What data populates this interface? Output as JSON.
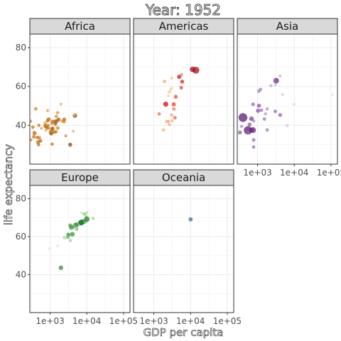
{
  "chart_data": {
    "type": "scatter",
    "title": "Year: 1952",
    "xlabel": "GDP per capita",
    "ylabel": "life expectancy",
    "x_scale": "log10",
    "xlim": [
      280,
      150000
    ],
    "ylim": [
      20,
      87
    ],
    "x_ticks": [
      1000,
      10000,
      100000
    ],
    "x_tick_labels": [
      "1e+03",
      "1e+04",
      "1e+05"
    ],
    "y_ticks": [
      40,
      60,
      80
    ],
    "y_tick_labels": [
      "40",
      "60",
      "80"
    ],
    "grid": true,
    "legend": "none",
    "facets": [
      {
        "name": "Africa",
        "points": [
          {
            "x": 2449,
            "y": 43.1,
            "c": "#d08a2e",
            "s": 2.6
          },
          {
            "x": 3521,
            "y": 30.0,
            "c": "#8a4a07",
            "s": 2.8
          },
          {
            "x": 1063,
            "y": 38.2,
            "c": "#cf7a14",
            "s": 2.4
          },
          {
            "x": 851,
            "y": 47.6,
            "c": "#d9a24f",
            "s": 2.2
          },
          {
            "x": 543,
            "y": 32.0,
            "c": "#b8660c",
            "s": 2.6
          },
          {
            "x": 339,
            "y": 39.0,
            "c": "#c77712",
            "s": 2.4
          },
          {
            "x": 1173,
            "y": 38.5,
            "c": "#c46f11",
            "s": 2.5
          },
          {
            "x": 1071,
            "y": 35.5,
            "c": "#d08224",
            "s": 2.2
          },
          {
            "x": 1179,
            "y": 38.1,
            "c": "#b66a10",
            "s": 2.4
          },
          {
            "x": 1103,
            "y": 40.7,
            "c": "#e2ac5a",
            "s": 2.0
          },
          {
            "x": 781,
            "y": 39.1,
            "c": "#cd7d1b",
            "s": 2.5
          },
          {
            "x": 2126,
            "y": 42.1,
            "c": "#d89335",
            "s": 2.2
          },
          {
            "x": 1389,
            "y": 40.5,
            "c": "#c2700f",
            "s": 2.5
          },
          {
            "x": 2670,
            "y": 34.5,
            "c": "#d58c2a",
            "s": 2.1
          },
          {
            "x": 1419,
            "y": 41.9,
            "c": "#8f4e08",
            "s": 3.2
          },
          {
            "x": 376,
            "y": 35.9,
            "c": "#b5630b",
            "s": 2.8
          },
          {
            "x": 362,
            "y": 34.1,
            "c": "#c9781a",
            "s": 2.7
          },
          {
            "x": 4293,
            "y": 37.0,
            "c": "#e8b462",
            "s": 2.0
          },
          {
            "x": 485,
            "y": 30.0,
            "c": "#c17215",
            "s": 2.3
          },
          {
            "x": 911,
            "y": 43.1,
            "c": "#bb6d12",
            "s": 2.8
          },
          {
            "x": 510,
            "y": 33.6,
            "c": "#ce801d",
            "s": 2.3
          },
          {
            "x": 300,
            "y": 32.5,
            "c": "#d58b2b",
            "s": 2.2
          },
          {
            "x": 853,
            "y": 42.3,
            "c": "#bd6e12",
            "s": 2.5
          },
          {
            "x": 298,
            "y": 42.1,
            "c": "#d69541",
            "s": 2.1
          },
          {
            "x": 576,
            "y": 38.5,
            "c": "#e0a451",
            "s": 2.1
          },
          {
            "x": 2387,
            "y": 42.7,
            "c": "#c77513",
            "s": 2.4
          },
          {
            "x": 1443,
            "y": 36.7,
            "c": "#cb7917",
            "s": 2.4
          },
          {
            "x": 369,
            "y": 36.3,
            "c": "#d48a2d",
            "s": 2.3
          },
          {
            "x": 452,
            "y": 33.7,
            "c": "#c57416",
            "s": 2.5
          },
          {
            "x": 743,
            "y": 40.5,
            "c": "#d99a45",
            "s": 2.3
          },
          {
            "x": 1968,
            "y": 50.9,
            "c": "#e4b36a",
            "s": 2.1
          },
          {
            "x": 1688,
            "y": 42.9,
            "c": "#a35a09",
            "s": 2.9
          },
          {
            "x": 468,
            "y": 31.3,
            "c": "#c06c10",
            "s": 2.8
          },
          {
            "x": 2424,
            "y": 41.7,
            "c": "#d38924",
            "s": 2.1
          },
          {
            "x": 761,
            "y": 37.4,
            "c": "#e1a957",
            "s": 2.0
          },
          {
            "x": 1077,
            "y": 36.3,
            "c": "#a35c09",
            "s": 3.6
          },
          {
            "x": 493,
            "y": 40.0,
            "c": "#c87614",
            "s": 2.3
          },
          {
            "x": 1600,
            "y": 46.5,
            "c": "#d59033",
            "s": 2.3
          },
          {
            "x": 880,
            "y": 39.9,
            "c": "#c47214",
            "s": 2.3
          },
          {
            "x": 1136,
            "y": 30.3,
            "c": "#c26f13",
            "s": 2.3
          },
          {
            "x": 4725,
            "y": 45.0,
            "c": "#7a3f06",
            "s": 3.1
          },
          {
            "x": 1616,
            "y": 38.6,
            "c": "#d08220",
            "s": 2.6
          },
          {
            "x": 1148,
            "y": 41.4,
            "c": "#cf7d1a",
            "s": 2.3
          },
          {
            "x": 716,
            "y": 41.2,
            "c": "#e3aa55",
            "s": 2.2
          },
          {
            "x": 860,
            "y": 38.6,
            "c": "#bd6c12",
            "s": 2.5
          },
          {
            "x": 1468,
            "y": 44.6,
            "c": "#d28722",
            "s": 2.3
          },
          {
            "x": 734,
            "y": 39.6,
            "c": "#b96b12",
            "s": 2.6
          },
          {
            "x": 1147,
            "y": 42.0,
            "c": "#c97916",
            "s": 2.5
          },
          {
            "x": 406,
            "y": 48.5,
            "c": "#d08120",
            "s": 2.4
          },
          {
            "x": 4600,
            "y": 45.3,
            "c": "#e8b970",
            "s": 2.0
          },
          {
            "x": 1312,
            "y": 36.5,
            "c": "#c77618",
            "s": 2.4
          }
        ]
      },
      {
        "name": "Americas",
        "points": [
          {
            "x": 5911,
            "y": 62.5,
            "c": "#d22435",
            "s": 2.8
          },
          {
            "x": 2677,
            "y": 40.4,
            "c": "#f4a582",
            "s": 2.2
          },
          {
            "x": 2109,
            "y": 50.9,
            "c": "#c7102a",
            "s": 3.6
          },
          {
            "x": 11367,
            "y": 68.8,
            "c": "#a50f15",
            "s": 3.9
          },
          {
            "x": 3940,
            "y": 54.7,
            "c": "#e6553c",
            "s": 2.8
          },
          {
            "x": 2144,
            "y": 50.6,
            "c": "#e9472f",
            "s": 2.7
          },
          {
            "x": 2627,
            "y": 57.2,
            "c": "#fdbb84",
            "s": 2.1
          },
          {
            "x": 5587,
            "y": 59.4,
            "c": "#e34a33",
            "s": 2.6
          },
          {
            "x": 1398,
            "y": 45.9,
            "c": "#f36b4f",
            "s": 2.4
          },
          {
            "x": 3522,
            "y": 48.4,
            "c": "#f27f5e",
            "s": 2.5
          },
          {
            "x": 3048,
            "y": 45.3,
            "c": "#f79b72",
            "s": 2.3
          },
          {
            "x": 2428,
            "y": 42.0,
            "c": "#f29563",
            "s": 2.4
          },
          {
            "x": 1840,
            "y": 37.6,
            "c": "#fcae7c",
            "s": 2.3
          },
          {
            "x": 2195,
            "y": 41.9,
            "c": "#f8b48c",
            "s": 2.2
          },
          {
            "x": 2898,
            "y": 58.5,
            "c": "#fdc68e",
            "s": 2.0
          },
          {
            "x": 3478,
            "y": 50.8,
            "c": "#e54530",
            "s": 3.0
          },
          {
            "x": 3112,
            "y": 42.3,
            "c": "#f9a876",
            "s": 2.2
          },
          {
            "x": 2480,
            "y": 55.2,
            "c": "#fdcf94",
            "s": 2.0
          },
          {
            "x": 1952,
            "y": 62.6,
            "c": "#f7a15f",
            "s": 2.3
          },
          {
            "x": 3759,
            "y": 43.9,
            "c": "#ef6a4d",
            "s": 2.6
          },
          {
            "x": 3082,
            "y": 64.3,
            "c": "#fbbf7e",
            "s": 2.1
          },
          {
            "x": 3023,
            "y": 59.1,
            "c": "#fdd49e",
            "s": 2.0
          },
          {
            "x": 4900,
            "y": 65.0,
            "c": "#c01a2a",
            "s": 3.0
          },
          {
            "x": 13990,
            "y": 68.4,
            "c": "#a50f15",
            "s": 4.8
          },
          {
            "x": 5717,
            "y": 66.1,
            "c": "#f08a5a",
            "s": 2.3
          }
        ]
      },
      {
        "name": "Asia",
        "points": [
          {
            "x": 779,
            "y": 28.8,
            "c": "#9b70b5",
            "s": 2.4
          },
          {
            "x": 9867,
            "y": 50.9,
            "c": "#e1d2ea",
            "s": 2.0
          },
          {
            "x": 684,
            "y": 37.5,
            "c": "#7b3d92",
            "s": 3.4
          },
          {
            "x": 368,
            "y": 39.4,
            "c": "#a88bc4",
            "s": 2.3
          },
          {
            "x": 400,
            "y": 44.0,
            "c": "#5e1d75",
            "s": 6.2
          },
          {
            "x": 3054,
            "y": 60.9,
            "c": "#cfb8dd",
            "s": 2.1
          },
          {
            "x": 547,
            "y": 37.4,
            "c": "#5a1a6e",
            "s": 5.8
          },
          {
            "x": 750,
            "y": 37.5,
            "c": "#6e2b88",
            "s": 4.2
          },
          {
            "x": 3035,
            "y": 47.2,
            "c": "#9a6bb3",
            "s": 2.5
          },
          {
            "x": 4130,
            "y": 45.3,
            "c": "#8a55a7",
            "s": 2.6
          },
          {
            "x": 4087,
            "y": 65.4,
            "c": "#c7aed8",
            "s": 2.1
          },
          {
            "x": 3217,
            "y": 63.0,
            "c": "#6f2b87",
            "s": 4.0
          },
          {
            "x": 1547,
            "y": 43.2,
            "c": "#a98dc2",
            "s": 2.4
          },
          {
            "x": 1089,
            "y": 50.1,
            "c": "#8b58a8",
            "s": 2.9
          },
          {
            "x": 1031,
            "y": 47.5,
            "c": "#874fa6",
            "s": 3.0
          },
          {
            "x": 108382,
            "y": 55.6,
            "c": "#e8dcef",
            "s": 1.9
          },
          {
            "x": 4835,
            "y": 55.9,
            "c": "#d9c6e4",
            "s": 2.0
          },
          {
            "x": 1831,
            "y": 48.5,
            "c": "#b396cb",
            "s": 2.3
          },
          {
            "x": 786,
            "y": 42.2,
            "c": "#ae93c7",
            "s": 2.3
          },
          {
            "x": 331,
            "y": 36.3,
            "c": "#91619e",
            "s": 2.9
          },
          {
            "x": 546,
            "y": 36.2,
            "c": "#9a6ab3",
            "s": 2.6
          },
          {
            "x": 1828,
            "y": 37.6,
            "c": "#a17cbd",
            "s": 2.4
          },
          {
            "x": 684,
            "y": 43.4,
            "c": "#7d4498",
            "s": 3.2
          },
          {
            "x": 1273,
            "y": 47.8,
            "c": "#9f79bb",
            "s": 2.5
          },
          {
            "x": 6460,
            "y": 39.9,
            "c": "#d2bde0",
            "s": 2.1
          },
          {
            "x": 2315,
            "y": 60.4,
            "c": "#c2a6d4",
            "s": 2.2
          },
          {
            "x": 1083,
            "y": 57.6,
            "c": "#a383bf",
            "s": 2.5
          },
          {
            "x": 1643,
            "y": 45.9,
            "c": "#b59bcb",
            "s": 2.3
          },
          {
            "x": 1206,
            "y": 58.5,
            "c": "#a27fbc",
            "s": 2.4
          },
          {
            "x": 757,
            "y": 50.8,
            "c": "#9a6db4",
            "s": 2.7
          },
          {
            "x": 605,
            "y": 40.4,
            "c": "#8d5aaa",
            "s": 2.8
          },
          {
            "x": 1516,
            "y": 43.2,
            "c": "#b196c8",
            "s": 2.3
          },
          {
            "x": 781,
            "y": 32.5,
            "c": "#9c74b7",
            "s": 2.6
          }
        ]
      },
      {
        "name": "Europe",
        "points": [
          {
            "x": 1601,
            "y": 55.2,
            "c": "#d9f0d3",
            "s": 2.0
          },
          {
            "x": 6137,
            "y": 66.8,
            "c": "#3a8e34",
            "s": 3.0
          },
          {
            "x": 8343,
            "y": 68.0,
            "c": "#2e7d29",
            "s": 3.2
          },
          {
            "x": 973,
            "y": 53.8,
            "c": "#d5efcf",
            "s": 2.1
          },
          {
            "x": 2444,
            "y": 59.6,
            "c": "#a7d89c",
            "s": 2.3
          },
          {
            "x": 3119,
            "y": 61.2,
            "c": "#6eb764",
            "s": 2.5
          },
          {
            "x": 6876,
            "y": 66.9,
            "c": "#a5d99a",
            "s": 2.3
          },
          {
            "x": 9692,
            "y": 70.8,
            "c": "#b2df8a",
            "s": 2.3
          },
          {
            "x": 6424,
            "y": 66.6,
            "c": "#cdeac3",
            "s": 2.2
          },
          {
            "x": 7030,
            "y": 67.4,
            "c": "#1b7837",
            "s": 3.8
          },
          {
            "x": 7144,
            "y": 67.5,
            "c": "#1e7a2f",
            "s": 4.1
          },
          {
            "x": 3531,
            "y": 65.9,
            "c": "#58a84e",
            "s": 2.9
          },
          {
            "x": 5264,
            "y": 64.0,
            "c": "#6bb25f",
            "s": 2.5
          },
          {
            "x": 7267,
            "y": 72.5,
            "c": "#c7e9c0",
            "s": 2.1
          },
          {
            "x": 5211,
            "y": 66.9,
            "c": "#a2d593",
            "s": 2.3
          },
          {
            "x": 4931,
            "y": 65.9,
            "c": "#2a7f26",
            "s": 3.8
          },
          {
            "x": 2648,
            "y": 59.2,
            "c": "#c4e6b8",
            "s": 2.1
          },
          {
            "x": 8942,
            "y": 68.0,
            "c": "#79c06e",
            "s": 2.5
          },
          {
            "x": 10095,
            "y": 72.7,
            "c": "#b0df9f",
            "s": 2.2
          },
          {
            "x": 4029,
            "y": 61.3,
            "c": "#3f9240",
            "s": 3.3
          },
          {
            "x": 3068,
            "y": 59.8,
            "c": "#6eb766",
            "s": 2.6
          },
          {
            "x": 3145,
            "y": 61.0,
            "c": "#56a44f",
            "s": 2.8
          },
          {
            "x": 3582,
            "y": 58.0,
            "c": "#9fd394",
            "s": 2.3
          },
          {
            "x": 5075,
            "y": 64.4,
            "c": "#b9e3ab",
            "s": 2.2
          },
          {
            "x": 4215,
            "y": 65.6,
            "c": "#cdeac1",
            "s": 2.1
          },
          {
            "x": 3834,
            "y": 64.9,
            "c": "#3b8f36",
            "s": 3.5
          },
          {
            "x": 8528,
            "y": 71.9,
            "c": "#8cc97f",
            "s": 2.4
          },
          {
            "x": 14734,
            "y": 69.6,
            "c": "#a5d796",
            "s": 2.3
          },
          {
            "x": 1969,
            "y": 43.6,
            "c": "#3e8b3a",
            "s": 3.2
          },
          {
            "x": 9979,
            "y": 69.2,
            "c": "#2b7f27",
            "s": 3.9
          }
        ]
      },
      {
        "name": "Oceania",
        "points": [
          {
            "x": 10040,
            "y": 69.1,
            "c": "#3b63b2",
            "s": 2.9
          }
        ]
      }
    ]
  }
}
